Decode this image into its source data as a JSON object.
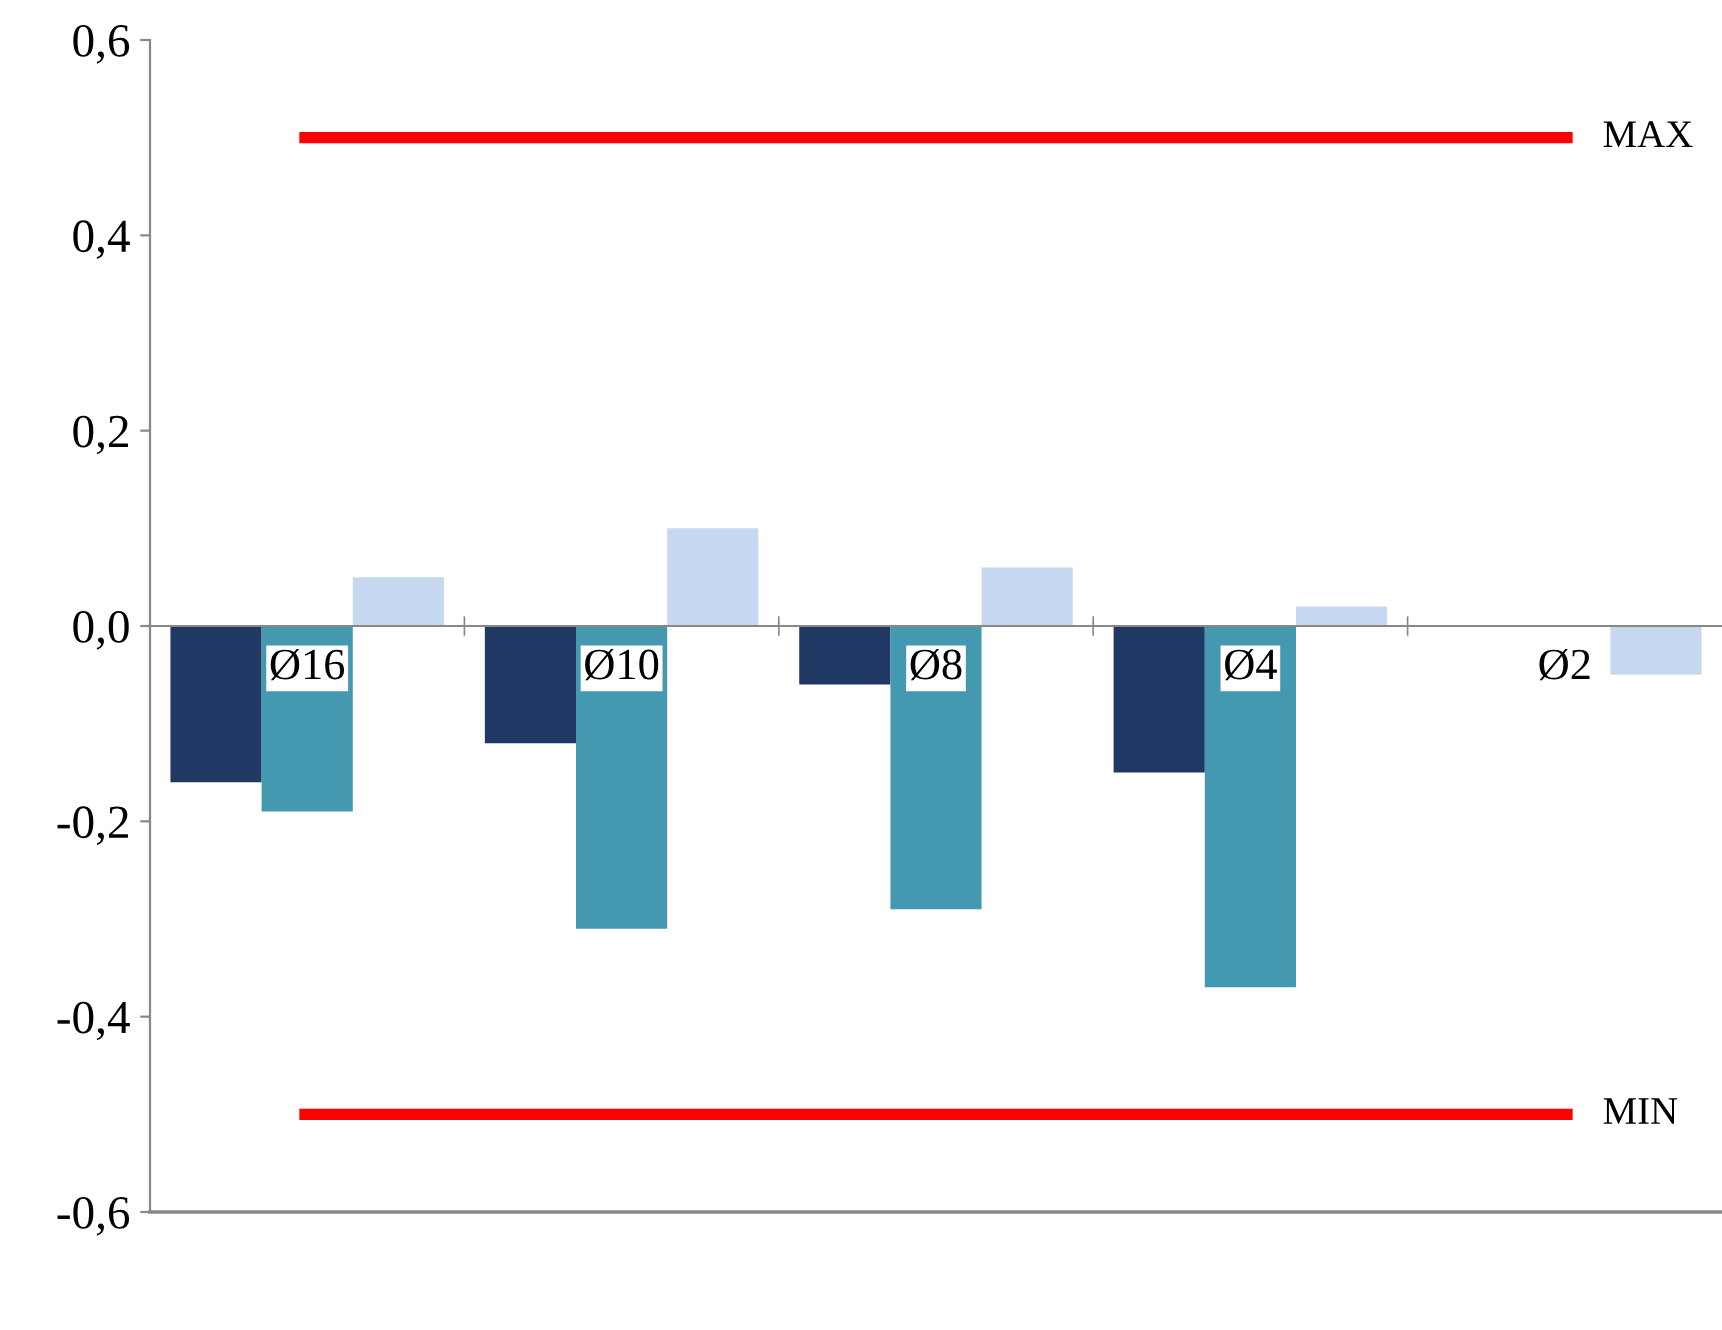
{
  "chart_data": {
    "type": "bar",
    "categories": [
      "Ø16",
      "Ø10",
      "Ø8",
      "Ø4",
      "Ø2"
    ],
    "series": [
      {
        "color": "#1f3864",
        "values": [
          -0.16,
          -0.12,
          -0.06,
          -0.15,
          null
        ]
      },
      {
        "color": "#4499b0",
        "values": [
          -0.19,
          -0.31,
          -0.29,
          -0.37,
          null
        ]
      },
      {
        "color": "#c6d8f0",
        "values": [
          0.05,
          0.1,
          0.06,
          0.02,
          -0.05
        ]
      }
    ],
    "ylim": [
      -0.6,
      0.6
    ],
    "yticks": [
      {
        "value": -0.6,
        "label": "-0,6"
      },
      {
        "value": -0.4,
        "label": "-0,4"
      },
      {
        "value": -0.2,
        "label": "-0,2"
      },
      {
        "value": 0,
        "label": "0,0"
      },
      {
        "value": 0.2,
        "label": "0,2"
      },
      {
        "value": 0.4,
        "label": "0,4"
      },
      {
        "value": 0.6,
        "label": "0,6"
      }
    ],
    "ref_lines": [
      {
        "axis": "y",
        "value": 0.5,
        "label": "MAX",
        "color": "#ff0000"
      },
      {
        "axis": "y",
        "value": -0.5,
        "label": "MIN",
        "color": "#ff0000"
      }
    ],
    "grid": false,
    "legend": false
  }
}
